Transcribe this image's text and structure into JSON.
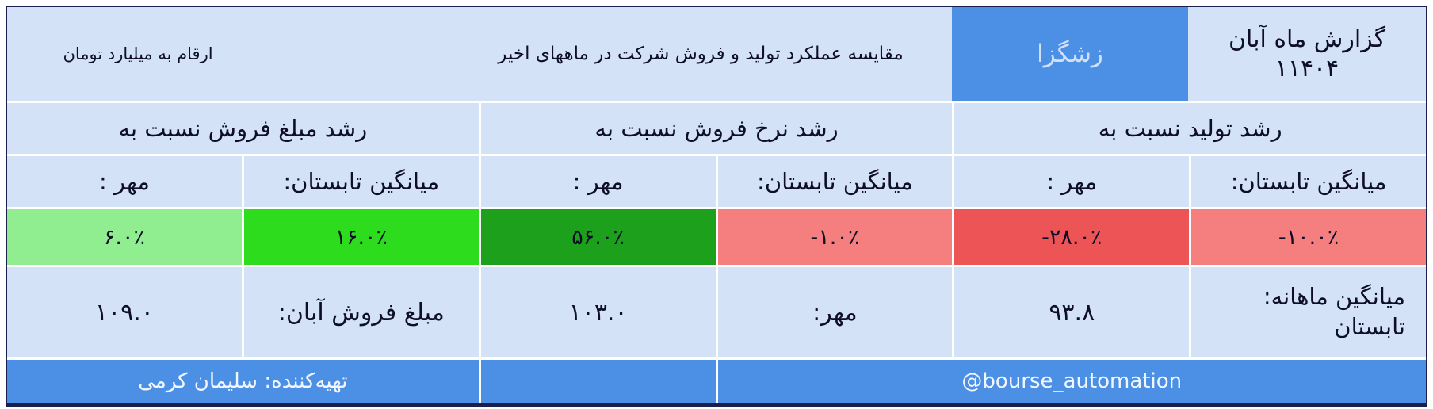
{
  "palette": {
    "table_bg": "#d4e2f7",
    "accent_blue": "#4b90e5",
    "border_navy": "#1b1f4e",
    "red_strong": "#ec5455",
    "red_light": "#f57f7f",
    "green_dark": "#1da11d",
    "green_bright": "#2edc1e",
    "green_light": "#90ee90"
  },
  "header": {
    "title_line1": "گزارش ماه آبان",
    "title_line2": "۱۱۴۰۴",
    "ticker": "زشگزا",
    "subtitle": "مقایسه عملکرد تولید و فروش شرکت در ماههای اخیر",
    "unit_note": "ارقام به میلیارد تومان"
  },
  "groups": [
    {
      "label": "رشد تولید نسبت به",
      "sub": [
        {
          "label": "میانگین تابستان:",
          "value": "-۱۰.۰٪",
          "color": "#f57f7f"
        },
        {
          "label": "مهر :",
          "value": "-۲۸.۰٪",
          "color": "#ec5455"
        }
      ]
    },
    {
      "label": "رشد نرخ فروش نسبت به",
      "sub": [
        {
          "label": "میانگین تابستان:",
          "value": "-۱.۰٪",
          "color": "#f57f7f"
        },
        {
          "label": "مهر :",
          "value": "۵۶.۰٪",
          "color": "#1da11d"
        }
      ]
    },
    {
      "label": "رشد مبلغ فروش نسبت به",
      "sub": [
        {
          "label": "میانگین تابستان:",
          "value": "۱۶.۰٪",
          "color": "#2edc1e"
        },
        {
          "label": "مهر :",
          "value": "۶.۰٪",
          "color": "#90ee90"
        }
      ]
    }
  ],
  "values_row": {
    "monthly_avg_label1": "میانگین ماهانه:",
    "monthly_avg_label2": "تابستان",
    "summer_avg_value": "۹۳.۸",
    "mehr_label": "مهر:",
    "mehr_value": "۱۰۳.۰",
    "aban_sales_label": "مبلغ فروش آبان:",
    "aban_sales_value": "۱۰۹.۰"
  },
  "footer": {
    "credit": "تهیه‌کننده: سلیمان کرمی",
    "handle": "@bourse_automation"
  },
  "chart_data": {
    "type": "table",
    "title": "گزارش ماه آبان ۱۱۴۰۴ - زشگزا",
    "subtitle": "مقایسه عملکرد تولید و فروش شرکت در ماههای اخیر",
    "unit": "ارقام به میلیارد تومان",
    "rows": [
      {
        "metric": "رشد تولید نسبت به",
        "vs_summer_avg_pct": -10.0,
        "vs_mehr_pct": -28.0
      },
      {
        "metric": "رشد نرخ فروش نسبت به",
        "vs_summer_avg_pct": -1.0,
        "vs_mehr_pct": 56.0
      },
      {
        "metric": "رشد مبلغ فروش نسبت به",
        "vs_summer_avg_pct": 16.0,
        "vs_mehr_pct": 6.0
      }
    ],
    "amounts_billion_toman": {
      "summer_monthly_average": 93.8,
      "mehr": 103.0,
      "aban_sales": 109.0
    }
  }
}
